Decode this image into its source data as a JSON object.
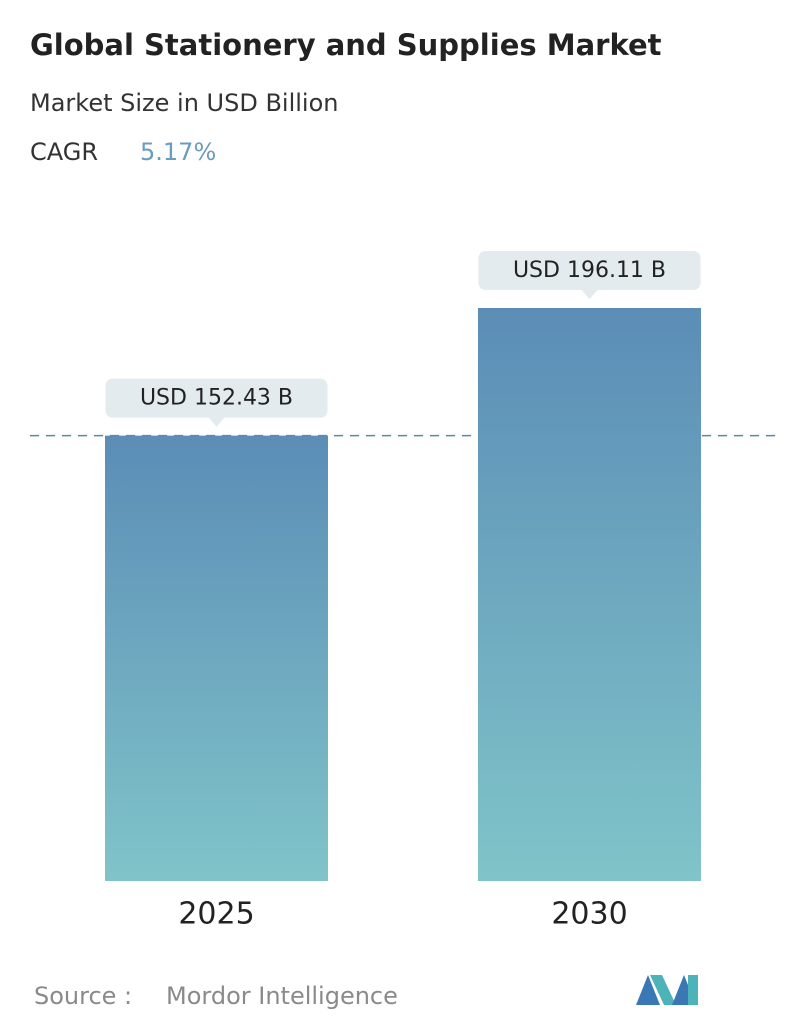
{
  "chart_data": {
    "type": "bar",
    "title": "Global Stationery and Supplies Market",
    "subtitle": "Market Size in USD Billion",
    "cagr_label": "CAGR",
    "cagr_value": "5.17%",
    "categories": [
      "2025",
      "2030"
    ],
    "values": [
      152.43,
      196.11
    ],
    "value_labels": [
      "USD 152.43 B",
      "USD 196.11 B"
    ],
    "gradient": [
      "#5b8db6",
      "#80c4c9"
    ],
    "source_label": "Source :",
    "source": "Mordor Intelligence"
  }
}
